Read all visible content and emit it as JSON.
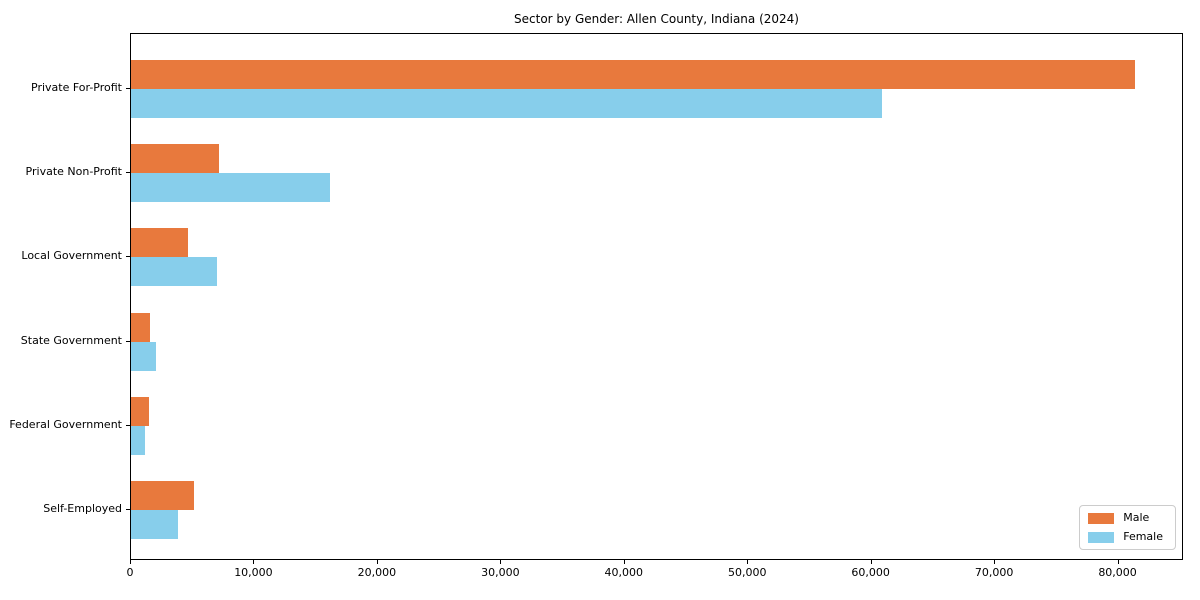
{
  "chart_data": {
    "type": "bar",
    "orientation": "horizontal",
    "title": "Sector by Gender: Allen County, Indiana (2024)",
    "categories": [
      "Private For-Profit",
      "Private Non-Profit",
      "Local Government",
      "State Government",
      "Federal Government",
      "Self-Employed"
    ],
    "series": [
      {
        "name": "Male",
        "color": "#E8793D",
        "values": [
          81300,
          7100,
          4600,
          1500,
          1450,
          5100
        ]
      },
      {
        "name": "Female",
        "color": "#87CEEB",
        "values": [
          60800,
          16100,
          7000,
          2000,
          1100,
          3800
        ]
      }
    ],
    "xlabel": "",
    "ylabel": "",
    "xlim": [
      0,
      85300
    ],
    "xticks": [
      0,
      10000,
      20000,
      30000,
      40000,
      50000,
      60000,
      70000,
      80000
    ],
    "xtick_labels": [
      "0",
      "10,000",
      "20,000",
      "30,000",
      "40,000",
      "50,000",
      "60,000",
      "70,000",
      "80,000"
    ],
    "grid": false,
    "legend_position": "lower right",
    "frame_color": "#000000",
    "background_color": "#ffffff"
  }
}
